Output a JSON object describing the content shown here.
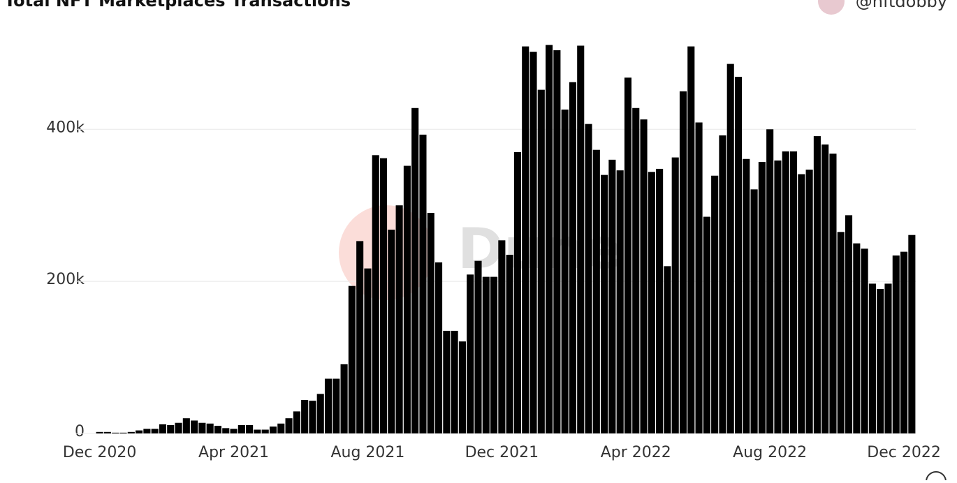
{
  "chart_data": {
    "type": "bar",
    "title": "Total NFT Marketplaces Transactions",
    "author": "@nftdobby",
    "watermark": "Dune",
    "color": "#000000",
    "grid": true,
    "ylim": [
      0,
      515000
    ],
    "yticks": [
      0,
      {
        "value": 200000,
        "label": "200k"
      },
      {
        "value": 400000,
        "label": "400k"
      }
    ],
    "categories": [
      "Dec 2020",
      null,
      null,
      null,
      null,
      null,
      null,
      null,
      null,
      null,
      null,
      null,
      null,
      null,
      null,
      null,
      null,
      "Apr 2021",
      null,
      null,
      null,
      null,
      null,
      null,
      null,
      null,
      null,
      null,
      null,
      null,
      null,
      null,
      null,
      null,
      "Aug 2021",
      null,
      null,
      null,
      null,
      null,
      null,
      null,
      null,
      null,
      null,
      null,
      null,
      null,
      null,
      null,
      null,
      "Dec 2021",
      null,
      null,
      null,
      null,
      null,
      null,
      null,
      null,
      null,
      null,
      null,
      null,
      null,
      null,
      null,
      null,
      "Apr 2022",
      null,
      null,
      null,
      null,
      null,
      null,
      null,
      null,
      null,
      null,
      null,
      null,
      null,
      null,
      null,
      null,
      "Aug 2022",
      null,
      null,
      null,
      null,
      null,
      null,
      null,
      null,
      null,
      null,
      null,
      null,
      null,
      null,
      null,
      null,
      "Dec 2022",
      null
    ],
    "values": [
      2000,
      2000,
      1000,
      1000,
      2000,
      4000,
      6000,
      6000,
      12000,
      11000,
      14000,
      20000,
      17000,
      14000,
      13000,
      10000,
      7000,
      6000,
      11000,
      11000,
      5000,
      5000,
      9000,
      13000,
      20000,
      29000,
      44000,
      43000,
      52000,
      72000,
      72000,
      91000,
      194000,
      253000,
      217000,
      366000,
      362000,
      268000,
      300000,
      352000,
      428000,
      393000,
      290000,
      225000,
      135000,
      135000,
      121000,
      209000,
      227000,
      206000,
      206000,
      254000,
      235000,
      370000,
      509000,
      502000,
      452000,
      511000,
      504000,
      426000,
      462000,
      510000,
      407000,
      373000,
      340000,
      360000,
      346000,
      468000,
      428000,
      413000,
      344000,
      348000,
      220000,
      363000,
      450000,
      509000,
      409000,
      285000,
      339000,
      392000,
      486000,
      469000,
      361000,
      321000,
      357000,
      400000,
      359000,
      371000,
      371000,
      341000,
      347000,
      391000,
      380000,
      368000,
      265000,
      287000,
      250000,
      243000,
      197000,
      190000,
      197000,
      234000,
      239000,
      261000
    ]
  }
}
